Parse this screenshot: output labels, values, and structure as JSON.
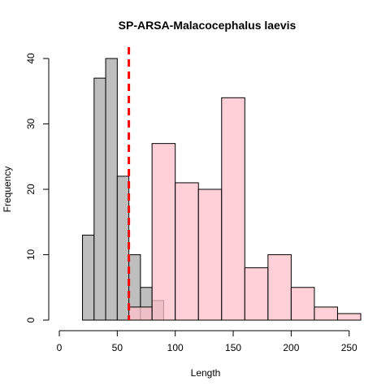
{
  "chart_data": {
    "type": "bar",
    "title": "SP-ARSA-Malacocephalus laevis",
    "xlabel": "Length",
    "ylabel": "Frequency",
    "xlim": [
      0,
      260
    ],
    "ylim": [
      0,
      40
    ],
    "x_ticks": [
      0,
      50,
      100,
      150,
      200,
      250
    ],
    "y_ticks": [
      0,
      10,
      20,
      30,
      40
    ],
    "grid": false,
    "legend": "none",
    "series": [
      {
        "color": "#bebebe",
        "bin_width": 10,
        "bins": [
          {
            "x0": 20,
            "x1": 30,
            "count": 13
          },
          {
            "x0": 30,
            "x1": 40,
            "count": 37
          },
          {
            "x0": 40,
            "x1": 50,
            "count": 40
          },
          {
            "x0": 50,
            "x1": 60,
            "count": 22
          },
          {
            "x0": 60,
            "x1": 70,
            "count": 10
          },
          {
            "x0": 70,
            "x1": 80,
            "count": 5
          },
          {
            "x0": 80,
            "x1": 90,
            "count": 3
          }
        ]
      },
      {
        "color": "#ffc0cb",
        "bin_width": 20,
        "bins": [
          {
            "x0": 60,
            "x1": 80,
            "count": 2
          },
          {
            "x0": 80,
            "x1": 100,
            "count": 27
          },
          {
            "x0": 100,
            "x1": 120,
            "count": 21
          },
          {
            "x0": 120,
            "x1": 140,
            "count": 20
          },
          {
            "x0": 140,
            "x1": 160,
            "count": 34
          },
          {
            "x0": 160,
            "x1": 180,
            "count": 8
          },
          {
            "x0": 180,
            "x1": 200,
            "count": 10
          },
          {
            "x0": 200,
            "x1": 220,
            "count": 5
          },
          {
            "x0": 220,
            "x1": 240,
            "count": 2
          },
          {
            "x0": 240,
            "x1": 260,
            "count": 1
          }
        ]
      }
    ],
    "reference_line": {
      "x": 60,
      "color": "#ff0000",
      "style": "dashed"
    }
  }
}
